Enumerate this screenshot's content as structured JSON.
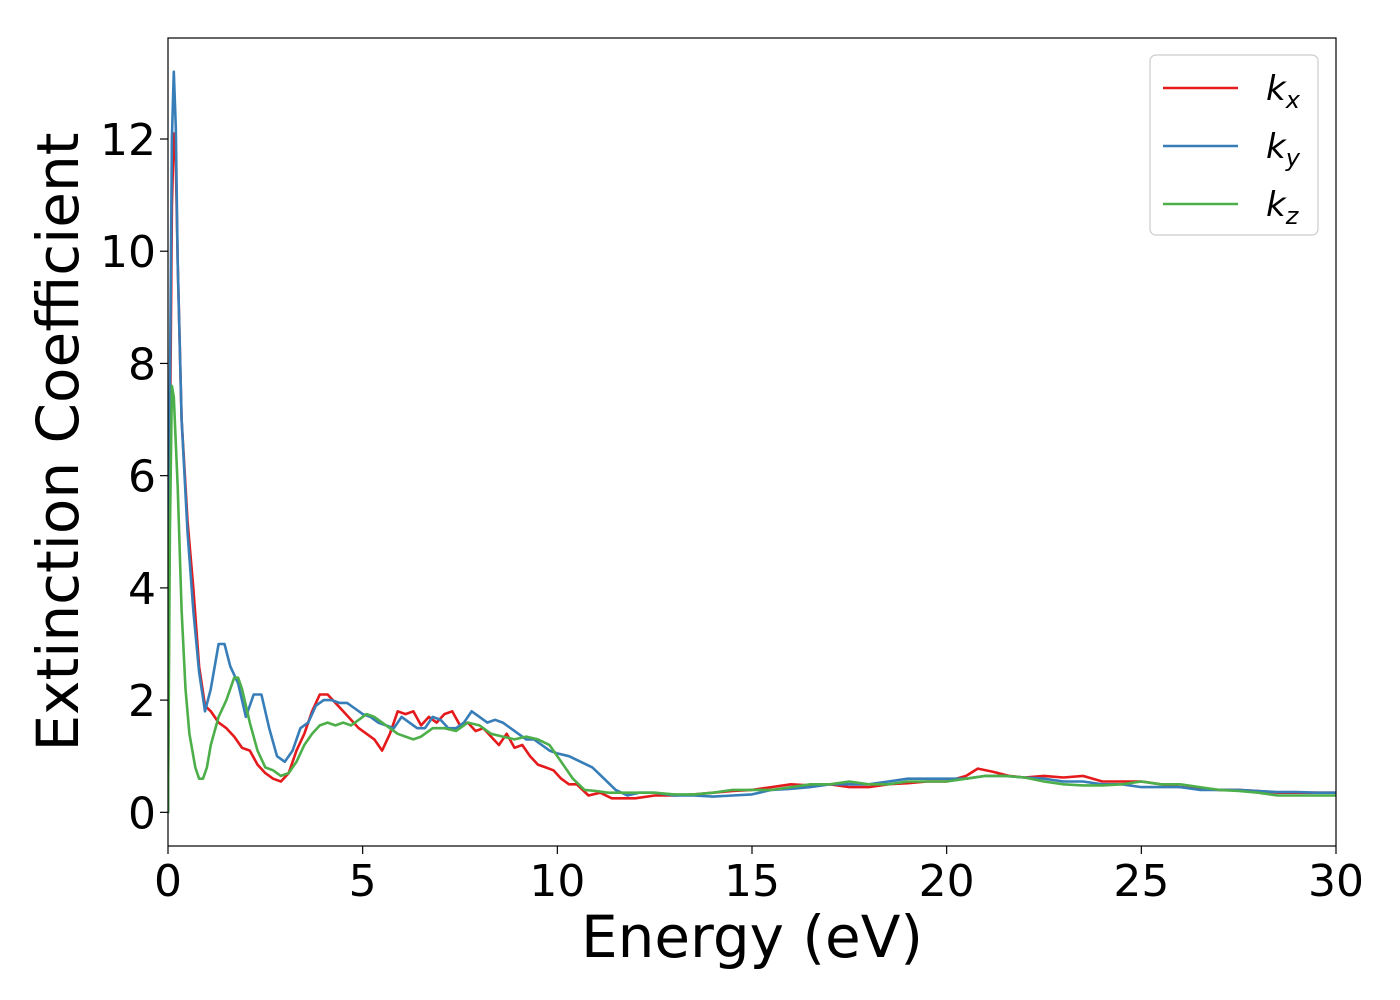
{
  "chart_data": {
    "type": "line",
    "xlabel": "Energy (eV)",
    "ylabel": "Extinction Coefficient",
    "xlim": [
      0,
      30
    ],
    "ylim": [
      -0.6,
      13.8
    ],
    "xticks": [
      0,
      5,
      10,
      15,
      20,
      25,
      30
    ],
    "xtick_labels": [
      "0",
      "5",
      "10",
      "15",
      "20",
      "25",
      "30"
    ],
    "yticks": [
      0,
      2,
      4,
      6,
      8,
      10,
      12
    ],
    "ytick_labels": [
      "0",
      "2",
      "4",
      "6",
      "8",
      "10",
      "12"
    ],
    "grid": false,
    "legend": {
      "placement": "top-right"
    },
    "series": [
      {
        "name": "k_x",
        "label_main": "k",
        "label_sub": "x",
        "color": "#e41a1c",
        "x": [
          0,
          0.05,
          0.1,
          0.15,
          0.2,
          0.25,
          0.35,
          0.5,
          0.65,
          0.8,
          0.95,
          1.1,
          1.3,
          1.5,
          1.7,
          1.9,
          2.1,
          2.3,
          2.5,
          2.7,
          2.9,
          3.1,
          3.3,
          3.5,
          3.7,
          3.9,
          4.1,
          4.3,
          4.5,
          4.7,
          4.9,
          5.1,
          5.3,
          5.5,
          5.7,
          5.9,
          6.1,
          6.3,
          6.5,
          6.7,
          6.9,
          7.1,
          7.3,
          7.5,
          7.7,
          7.9,
          8.1,
          8.3,
          8.5,
          8.7,
          8.9,
          9.1,
          9.3,
          9.5,
          9.7,
          9.9,
          10.1,
          10.3,
          10.5,
          10.8,
          11.1,
          11.4,
          11.7,
          12.0,
          12.5,
          13,
          13.5,
          14,
          14.5,
          15,
          15.5,
          16,
          16.5,
          17,
          17.5,
          18,
          18.5,
          19,
          19.5,
          20,
          20.5,
          20.8,
          21.2,
          21.6,
          22,
          22.5,
          23,
          23.5,
          24,
          24.5,
          25,
          25.5,
          26,
          26.5,
          27,
          27.5,
          28,
          28.5,
          29,
          29.5,
          30
        ],
        "y": [
          0,
          6.5,
          10.8,
          12.1,
          11.6,
          9.8,
          7.0,
          5.2,
          4.0,
          2.6,
          1.9,
          1.8,
          1.6,
          1.5,
          1.35,
          1.15,
          1.1,
          0.85,
          0.7,
          0.6,
          0.55,
          0.7,
          1.1,
          1.4,
          1.8,
          2.1,
          2.1,
          1.95,
          1.8,
          1.65,
          1.5,
          1.4,
          1.3,
          1.1,
          1.4,
          1.8,
          1.75,
          1.8,
          1.55,
          1.7,
          1.6,
          1.75,
          1.8,
          1.55,
          1.6,
          1.45,
          1.5,
          1.35,
          1.2,
          1.4,
          1.15,
          1.2,
          1.0,
          0.85,
          0.8,
          0.75,
          0.6,
          0.5,
          0.5,
          0.3,
          0.35,
          0.25,
          0.25,
          0.25,
          0.3,
          0.3,
          0.32,
          0.35,
          0.38,
          0.4,
          0.45,
          0.5,
          0.48,
          0.5,
          0.45,
          0.45,
          0.5,
          0.52,
          0.55,
          0.55,
          0.65,
          0.78,
          0.72,
          0.65,
          0.62,
          0.65,
          0.62,
          0.65,
          0.55,
          0.55,
          0.55,
          0.5,
          0.45,
          0.42,
          0.4,
          0.4,
          0.38,
          0.35,
          0.35,
          0.35,
          0.35
        ]
      },
      {
        "name": "k_y",
        "label_main": "k",
        "label_sub": "y",
        "color": "#377eb8",
        "x": [
          0,
          0.05,
          0.1,
          0.15,
          0.2,
          0.25,
          0.35,
          0.5,
          0.65,
          0.8,
          0.95,
          1.1,
          1.3,
          1.45,
          1.6,
          1.8,
          2.0,
          2.2,
          2.4,
          2.6,
          2.8,
          3.0,
          3.2,
          3.4,
          3.6,
          3.8,
          4.0,
          4.2,
          4.4,
          4.6,
          4.8,
          5.0,
          5.2,
          5.4,
          5.6,
          5.8,
          6.0,
          6.2,
          6.4,
          6.6,
          6.8,
          7.0,
          7.2,
          7.4,
          7.6,
          7.8,
          8.0,
          8.2,
          8.4,
          8.6,
          8.8,
          9.0,
          9.2,
          9.4,
          9.6,
          9.8,
          10.0,
          10.3,
          10.6,
          10.9,
          11.2,
          11.5,
          11.8,
          12.1,
          12.5,
          13,
          13.5,
          14,
          14.5,
          15,
          15.5,
          16,
          16.5,
          17,
          17.5,
          18,
          18.5,
          19,
          19.5,
          20,
          20.5,
          21,
          21.5,
          22,
          22.5,
          23,
          23.5,
          24,
          24.5,
          25,
          25.5,
          26,
          26.5,
          27,
          27.5,
          28,
          28.5,
          29,
          29.5,
          30
        ],
        "y": [
          0,
          7.5,
          12.0,
          13.2,
          12.2,
          9.8,
          7.0,
          5.0,
          3.6,
          2.5,
          1.8,
          2.2,
          3.0,
          3.0,
          2.6,
          2.3,
          1.7,
          2.1,
          2.1,
          1.5,
          1.0,
          0.9,
          1.1,
          1.5,
          1.6,
          1.9,
          2.0,
          2.0,
          1.95,
          1.95,
          1.85,
          1.75,
          1.7,
          1.6,
          1.55,
          1.5,
          1.7,
          1.6,
          1.5,
          1.5,
          1.7,
          1.65,
          1.5,
          1.5,
          1.6,
          1.8,
          1.7,
          1.6,
          1.65,
          1.6,
          1.5,
          1.4,
          1.3,
          1.3,
          1.2,
          1.1,
          1.05,
          1.0,
          0.9,
          0.8,
          0.6,
          0.4,
          0.3,
          0.35,
          0.35,
          0.3,
          0.3,
          0.28,
          0.3,
          0.32,
          0.4,
          0.42,
          0.45,
          0.5,
          0.5,
          0.5,
          0.55,
          0.6,
          0.6,
          0.6,
          0.6,
          0.65,
          0.65,
          0.62,
          0.6,
          0.55,
          0.55,
          0.5,
          0.5,
          0.45,
          0.45,
          0.45,
          0.4,
          0.4,
          0.4,
          0.38,
          0.36,
          0.36,
          0.35,
          0.35
        ]
      },
      {
        "name": "k_z",
        "label_main": "k",
        "label_sub": "z",
        "color": "#4daf4a",
        "x": [
          0,
          0.05,
          0.1,
          0.15,
          0.25,
          0.35,
          0.45,
          0.55,
          0.7,
          0.8,
          0.9,
          1.0,
          1.1,
          1.3,
          1.5,
          1.7,
          1.8,
          1.9,
          2.1,
          2.3,
          2.5,
          2.7,
          2.9,
          3.1,
          3.3,
          3.5,
          3.7,
          3.9,
          4.1,
          4.3,
          4.5,
          4.7,
          4.9,
          5.1,
          5.3,
          5.5,
          5.7,
          5.9,
          6.1,
          6.3,
          6.5,
          6.8,
          7.1,
          7.4,
          7.7,
          8.0,
          8.3,
          8.6,
          8.9,
          9.2,
          9.5,
          9.8,
          10.1,
          10.4,
          10.7,
          11.0,
          11.3,
          11.6,
          12,
          12.5,
          13,
          13.5,
          14,
          14.5,
          15,
          15.5,
          16,
          16.5,
          17,
          17.5,
          18,
          18.5,
          19,
          19.5,
          20,
          20.5,
          21,
          21.5,
          22,
          22.5,
          23,
          23.5,
          24,
          24.5,
          25,
          25.5,
          26,
          26.5,
          27,
          27.5,
          28,
          28.5,
          29,
          29.5,
          30
        ],
        "y": [
          0,
          5.0,
          7.6,
          7.4,
          5.8,
          3.6,
          2.2,
          1.4,
          0.8,
          0.6,
          0.6,
          0.8,
          1.2,
          1.7,
          2.0,
          2.4,
          2.4,
          2.2,
          1.6,
          1.1,
          0.8,
          0.75,
          0.65,
          0.7,
          0.9,
          1.2,
          1.4,
          1.55,
          1.6,
          1.55,
          1.6,
          1.55,
          1.65,
          1.75,
          1.7,
          1.6,
          1.5,
          1.4,
          1.35,
          1.3,
          1.35,
          1.5,
          1.5,
          1.45,
          1.6,
          1.55,
          1.4,
          1.35,
          1.3,
          1.35,
          1.3,
          1.2,
          0.9,
          0.6,
          0.4,
          0.38,
          0.35,
          0.35,
          0.35,
          0.35,
          0.32,
          0.32,
          0.35,
          0.4,
          0.4,
          0.4,
          0.45,
          0.5,
          0.5,
          0.55,
          0.5,
          0.5,
          0.55,
          0.55,
          0.55,
          0.6,
          0.65,
          0.65,
          0.62,
          0.55,
          0.5,
          0.48,
          0.48,
          0.5,
          0.55,
          0.5,
          0.5,
          0.45,
          0.4,
          0.38,
          0.35,
          0.3,
          0.3,
          0.3,
          0.3
        ]
      }
    ]
  }
}
